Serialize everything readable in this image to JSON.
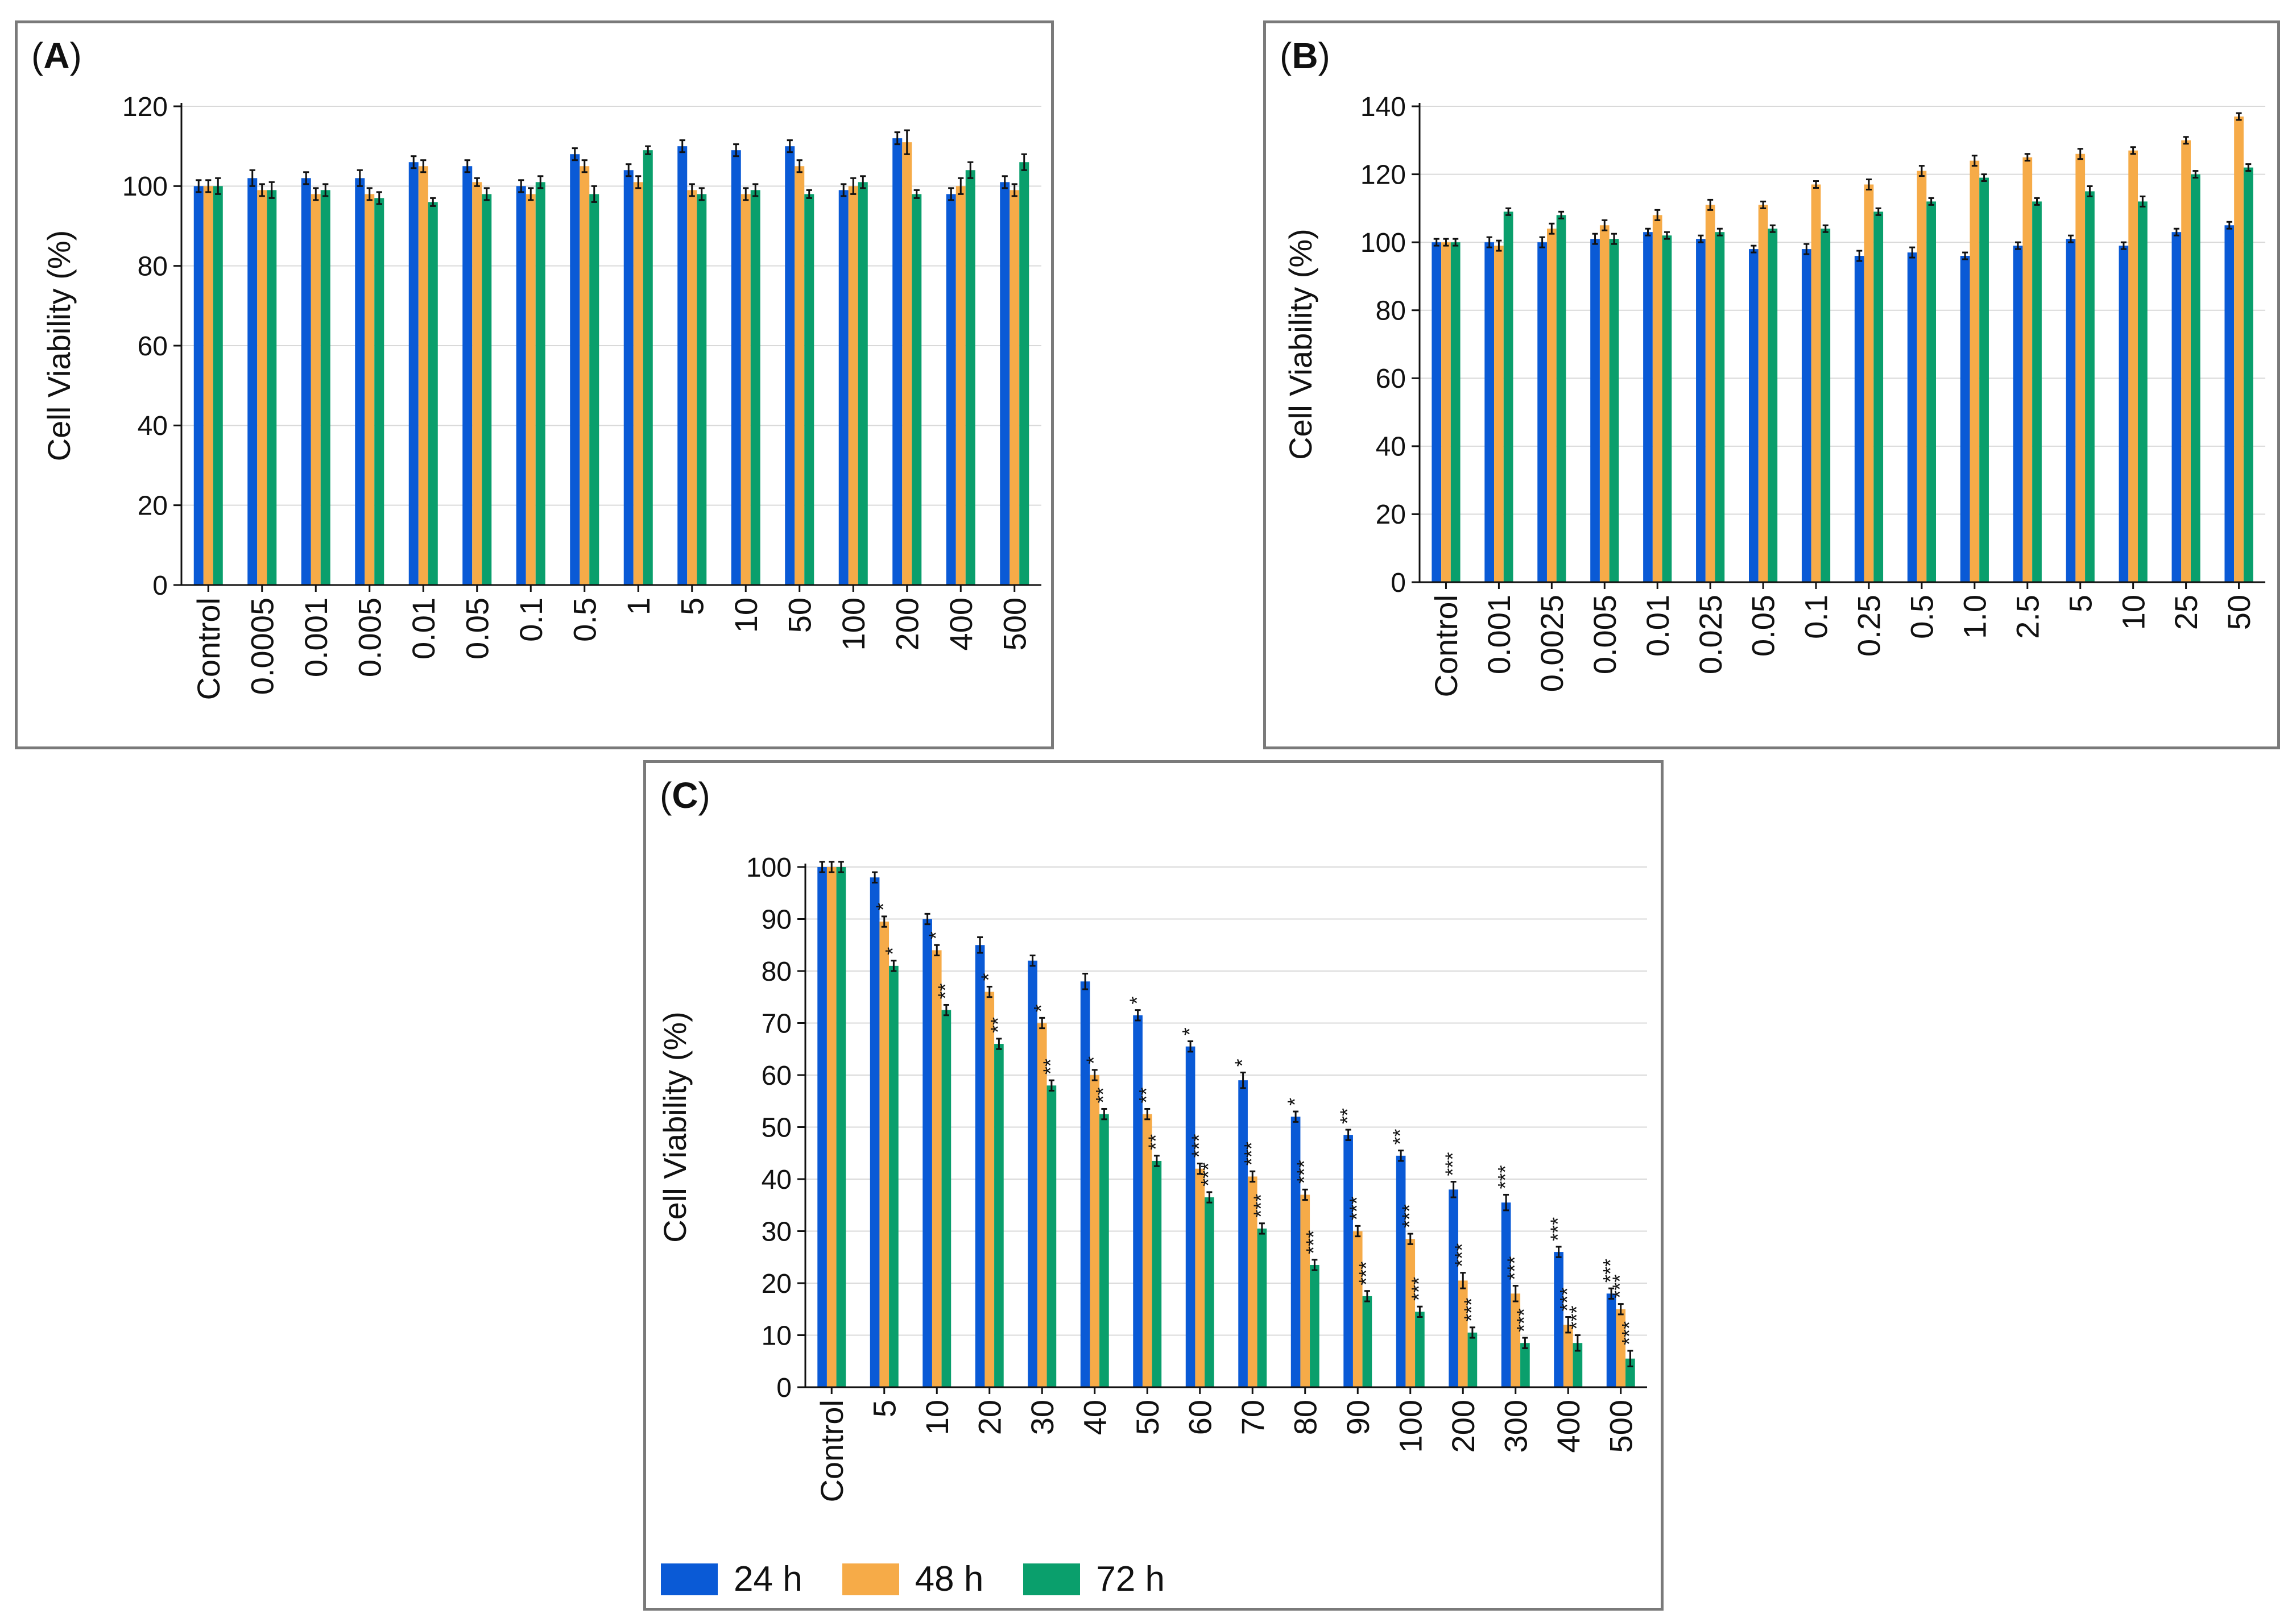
{
  "colors": {
    "h24": "#0a5ad6",
    "h48": "#f6ab48",
    "h72": "#0a9f6c",
    "grid": "#d9d9d9",
    "axis": "#111111",
    "frame": "#7a7a7a"
  },
  "legend": [
    {
      "label": "24 h",
      "color": "#0a5ad6"
    },
    {
      "label": "48 h",
      "color": "#f6ab48"
    },
    {
      "label": "72 h",
      "color": "#0a9f6c"
    }
  ],
  "panels": {
    "a": {
      "open": "(",
      "letter": "A",
      "close": ")"
    },
    "b": {
      "open": "(",
      "letter": "B",
      "close": ")"
    },
    "c": {
      "open": "(",
      "letter": "C",
      "close": ")"
    }
  },
  "chart_data": [
    {
      "id": "A",
      "type": "bar",
      "title": "",
      "xlabel": "",
      "ylabel": "Cell Viability (%)",
      "ylim": [
        0,
        120
      ],
      "yticks": [
        0,
        20,
        40,
        60,
        80,
        100,
        120
      ],
      "grid": true,
      "categories": [
        "Control",
        "0.0005",
        "0.001",
        "0.005",
        "0.01",
        "0.05",
        "0.1",
        "0.5",
        "1",
        "5",
        "10",
        "50",
        "100",
        "200",
        "400",
        "500"
      ],
      "series": [
        {
          "name": "24 h",
          "values": [
            100,
            102,
            102,
            102,
            106,
            105,
            100,
            108,
            104,
            110,
            109,
            110,
            99,
            112,
            98,
            101
          ],
          "errors": [
            1.5,
            2,
            1.5,
            2,
            1.5,
            1.5,
            1.5,
            1.5,
            1.5,
            1.5,
            1.5,
            1.5,
            1.5,
            1.5,
            1.5,
            1.5
          ]
        },
        {
          "name": "48 h",
          "values": [
            100,
            99,
            98,
            98,
            105,
            101,
            98,
            105,
            101,
            99,
            98,
            105,
            100,
            111,
            100,
            99
          ],
          "errors": [
            1.5,
            1.5,
            1.5,
            1.5,
            1.5,
            1,
            1.5,
            1.5,
            1.5,
            1.5,
            1.5,
            1.5,
            2,
            3,
            2,
            1.5
          ]
        },
        {
          "name": "72 h",
          "values": [
            100,
            99,
            99,
            97,
            96,
            98,
            101,
            98,
            109,
            98,
            99,
            98,
            101,
            98,
            104,
            106
          ],
          "errors": [
            2,
            2,
            1.5,
            1.5,
            1,
            1.5,
            1.5,
            2,
            1,
            1.5,
            1.5,
            1,
            1.5,
            1,
            2,
            2
          ]
        }
      ],
      "annotations": [
        [],
        [],
        []
      ]
    },
    {
      "id": "B",
      "type": "bar",
      "title": "",
      "xlabel": "",
      "ylabel": "Cell Viability (%)",
      "ylim": [
        0,
        140
      ],
      "yticks": [
        0,
        20,
        40,
        60,
        80,
        100,
        120,
        140
      ],
      "grid": true,
      "categories": [
        "Control",
        "0.001",
        "0.0025",
        "0.005",
        "0.01",
        "0.025",
        "0.05",
        "0.1",
        "0.25",
        "0.5",
        "1.0",
        "2.5",
        "5",
        "10",
        "25",
        "50"
      ],
      "series": [
        {
          "name": "24 h",
          "values": [
            100,
            100,
            100,
            101,
            103,
            101,
            98,
            98,
            96,
            97,
            96,
            99,
            101,
            99,
            103,
            105
          ],
          "errors": [
            1,
            1.5,
            1.5,
            1.5,
            1,
            1,
            1,
            1.5,
            1.5,
            1.5,
            1,
            1,
            1,
            1,
            1,
            1
          ]
        },
        {
          "name": "48 h",
          "values": [
            100,
            99,
            104,
            105,
            108,
            111,
            111,
            117,
            117,
            121,
            124,
            125,
            126,
            127,
            130,
            137
          ],
          "errors": [
            1,
            1.5,
            1.5,
            1.5,
            1.5,
            1.5,
            1,
            1,
            1.5,
            1.5,
            1.5,
            1,
            1.5,
            1,
            1,
            1
          ]
        },
        {
          "name": "72 h",
          "values": [
            100,
            109,
            108,
            101,
            102,
            103,
            104,
            104,
            109,
            112,
            119,
            112,
            115,
            112,
            120,
            122
          ],
          "errors": [
            1,
            1,
            1,
            1.5,
            1,
            1,
            1,
            1,
            1,
            1,
            1,
            1,
            1.5,
            1.5,
            1,
            1
          ]
        }
      ],
      "annotations": [
        [],
        [],
        []
      ]
    },
    {
      "id": "C",
      "type": "bar",
      "title": "",
      "xlabel": "",
      "ylabel": "Cell Viability (%)",
      "ylim": [
        0,
        100
      ],
      "yticks": [
        0,
        10,
        20,
        30,
        40,
        50,
        60,
        70,
        80,
        90,
        100
      ],
      "grid": true,
      "categories": [
        "Control",
        "5",
        "10",
        "20",
        "30",
        "40",
        "50",
        "60",
        "70",
        "80",
        "90",
        "100",
        "200",
        "300",
        "400",
        "500"
      ],
      "series": [
        {
          "name": "24 h",
          "values": [
            100,
            98,
            90,
            85,
            82,
            78,
            71.5,
            65.5,
            59,
            52,
            48.5,
            44.5,
            38,
            35.5,
            26,
            18
          ],
          "errors": [
            1,
            1,
            1,
            1.5,
            1,
            1.5,
            1,
            1,
            1.5,
            1,
            1,
            1,
            1.5,
            1.5,
            1,
            1
          ]
        },
        {
          "name": "48 h",
          "values": [
            100,
            89.5,
            84,
            76,
            70,
            60,
            52.5,
            42,
            40.5,
            37,
            30,
            28.5,
            20.5,
            18,
            12,
            15
          ],
          "errors": [
            1,
            1,
            1,
            1,
            1,
            1,
            1,
            1,
            1,
            1,
            1,
            1,
            1.5,
            1.5,
            1.5,
            1
          ]
        },
        {
          "name": "72 h",
          "values": [
            100,
            81,
            72.5,
            66,
            58,
            52.5,
            43.5,
            36.5,
            30.5,
            23.5,
            17.5,
            14.5,
            10.5,
            8.5,
            8.5,
            5.5
          ],
          "errors": [
            1,
            1,
            1,
            1,
            1,
            1,
            1,
            1,
            1,
            1,
            1,
            1,
            1,
            1,
            1.5,
            1.5
          ]
        }
      ],
      "annotations": [
        [
          "",
          "",
          "",
          "",
          "",
          "",
          "*",
          "*",
          "*",
          "*",
          "**",
          "**",
          "***",
          "***",
          "***",
          "***"
        ],
        [
          "",
          "*",
          "*",
          "*",
          "*",
          "*",
          "**",
          "***",
          "***",
          "***",
          "***",
          "***",
          "***",
          "***",
          "***",
          "***"
        ],
        [
          "",
          "*",
          "**",
          "**",
          "**",
          "**",
          "**",
          "***",
          "***",
          "***",
          "***",
          "***",
          "***",
          "***",
          "***",
          "***"
        ]
      ]
    }
  ]
}
